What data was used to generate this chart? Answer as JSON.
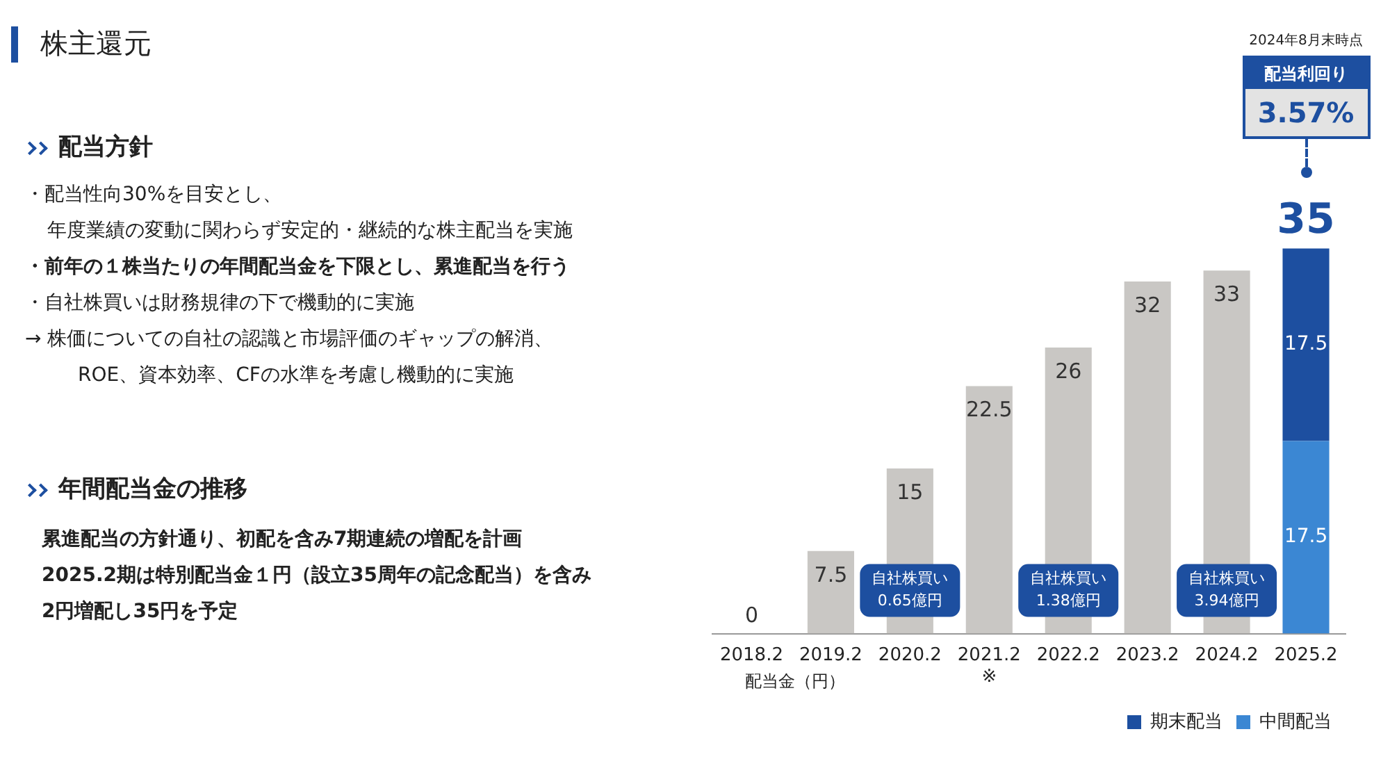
{
  "chart_data": {
    "type": "bar",
    "title": "株主還元",
    "categories": [
      "2018.2",
      "2019.2",
      "2020.2",
      "2021.2\n※",
      "2022.2",
      "2023.2",
      "2024.2",
      "2025.2"
    ],
    "stacked": true,
    "data_labels": true,
    "legend": "bottom right",
    "grid": false,
    "series": [
      {
        "color": "#c9c7c4",
        "values": [
          0,
          7.5,
          15,
          22.5,
          26,
          32,
          33,
          null
        ]
      },
      {
        "name": "中間配当",
        "color": "#3b87d3",
        "values": [
          null,
          null,
          null,
          null,
          null,
          null,
          null,
          17.5
        ]
      },
      {
        "name": "期末配当",
        "color": "#1d4fa0",
        "values": [
          null,
          null,
          null,
          null,
          null,
          null,
          null,
          17.5
        ]
      }
    ],
    "totals": [
      null,
      null,
      null,
      null,
      null,
      null,
      null,
      "35"
    ],
    "annotations": [
      "配当方針",
      "・配当性向30%を目安とし、",
      "年度業績の変動に関わらず安定的・継続的な株主配当を実施",
      "・前年の１株当たりの年間配当金を下限とし、累進配当を行う",
      "・自社株買いは財務規律の下で機動的に実施",
      "→ 株価についての自社の認識と市場評価のギャップの解消、",
      "ROE、資本効率、CFの水準を考慮し機動的に実施",
      "年間配当金の推移",
      "累進配当の方針通り、初配を含み7期連続の増配を計画",
      "2025.2期は特別配当金１円（設立35周年の記念配当）を含み",
      "2円増配し35円を予定",
      "自社株買い\n0.65億円",
      "自社株買い\n1.38億円",
      "自社株買い\n3.94億円",
      "2024年8月末時点",
      "配当利回り",
      "3.57%",
      "配当金（円）"
    ]
  }
}
